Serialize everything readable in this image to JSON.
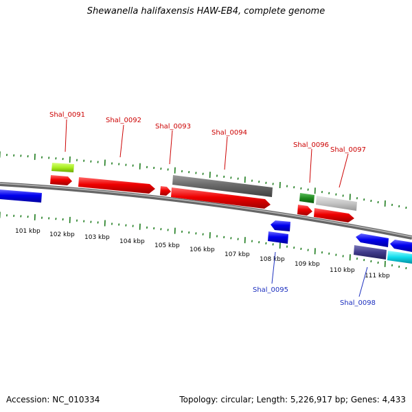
{
  "title": "Shewanella halifaxensis HAW-EB4, complete genome",
  "footer": {
    "accession": "Accession: NC_010334",
    "summary": "Topology: circular; Length: 5,226,917 bp; Genes: 4,433"
  },
  "colors": {
    "forward_label": "#cc0000",
    "reverse_label": "#1c2fbf",
    "tick": "#1a7a1a",
    "backbone": "#808080"
  },
  "kbp_labels": [
    "101 kbp",
    "102 kbp",
    "103 kbp",
    "104 kbp",
    "105 kbp",
    "106 kbp",
    "107 kbp",
    "108 kbp",
    "109 kbp",
    "110 kbp",
    "111 kbp"
  ],
  "gene_labels": {
    "shal_0091": "Shal_0091",
    "shal_0092": "Shal_0092",
    "shal_0093": "Shal_0093",
    "shal_0094": "Shal_0094",
    "shal_0095": "Shal_0095",
    "shal_0096": "Shal_0096",
    "shal_0097": "Shal_0097",
    "shal_0098": "Shal_0098"
  }
}
